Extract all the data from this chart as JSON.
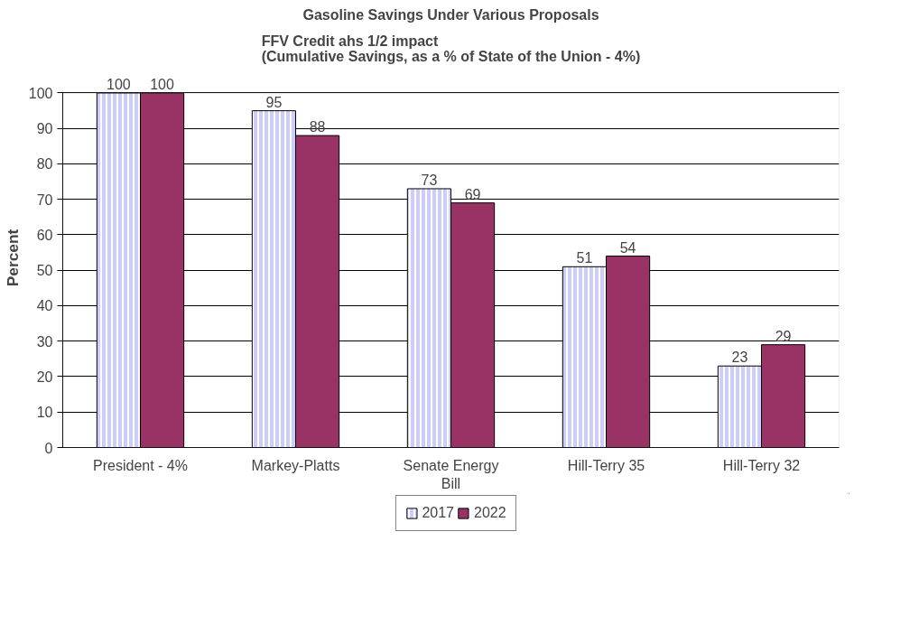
{
  "chart_data": {
    "type": "bar",
    "title": "Gasoline Savings Under Various Proposals",
    "subtitle": "FFV Credit ahs 1/2 impact\n(Cumulative Savings, as a % of State of the Union - 4%)",
    "ylabel": "Percent",
    "categories": [
      "President - 4%",
      "Markey-Platts",
      "Senate Energy Bill",
      "Hill-Terry 35",
      "Hill-Terry 32"
    ],
    "series": [
      {
        "name": "2017",
        "color": "#ccccff",
        "values": [
          100,
          95,
          73,
          51,
          23
        ]
      },
      {
        "name": "2022",
        "color": "#993366",
        "values": [
          100,
          88,
          69,
          54,
          29
        ]
      }
    ],
    "ylim": [
      0,
      100
    ],
    "yticks": [
      0,
      10,
      20,
      30,
      40,
      50,
      60,
      70,
      80,
      90,
      100
    ],
    "grid": "y",
    "legend": "bottom",
    "data_labels": true
  }
}
